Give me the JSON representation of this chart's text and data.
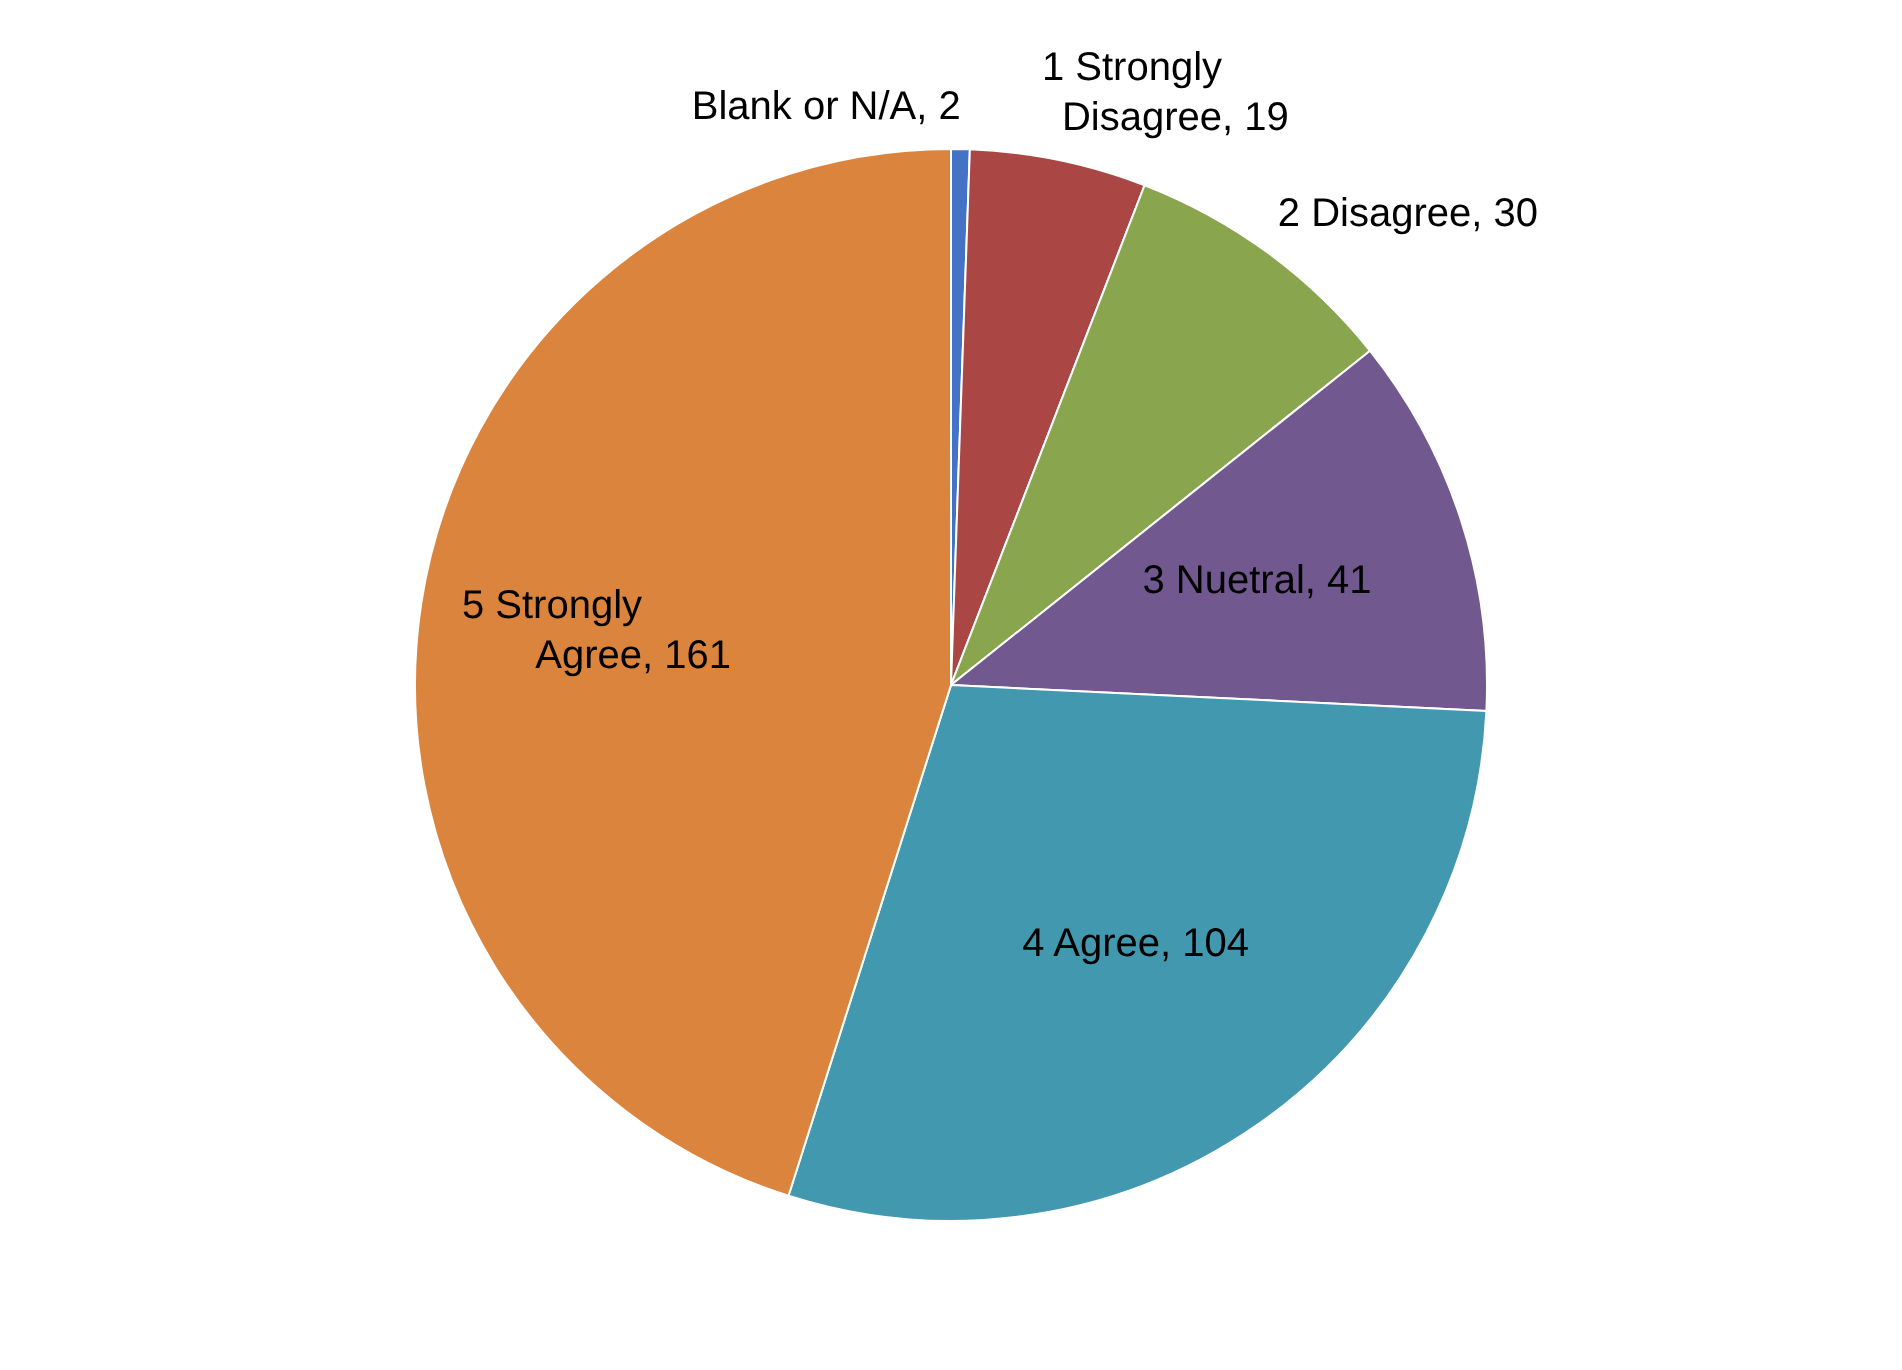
{
  "chart_data": {
    "type": "pie",
    "categories": [
      "Blank or N/A",
      "1 Strongly Disagree",
      "2 Disagree",
      "3 Nuetral",
      "4 Agree",
      "5 Strongly Agree"
    ],
    "values": [
      2,
      19,
      30,
      41,
      104,
      161
    ],
    "colors": [
      "#4472c4",
      "#aa4643",
      "#89a54e",
      "#71588f",
      "#4198af",
      "#db843d"
    ],
    "value_labels": [
      ", 2",
      ", 19",
      ", 30",
      ", 41",
      ", 104",
      ", 161"
    ]
  }
}
